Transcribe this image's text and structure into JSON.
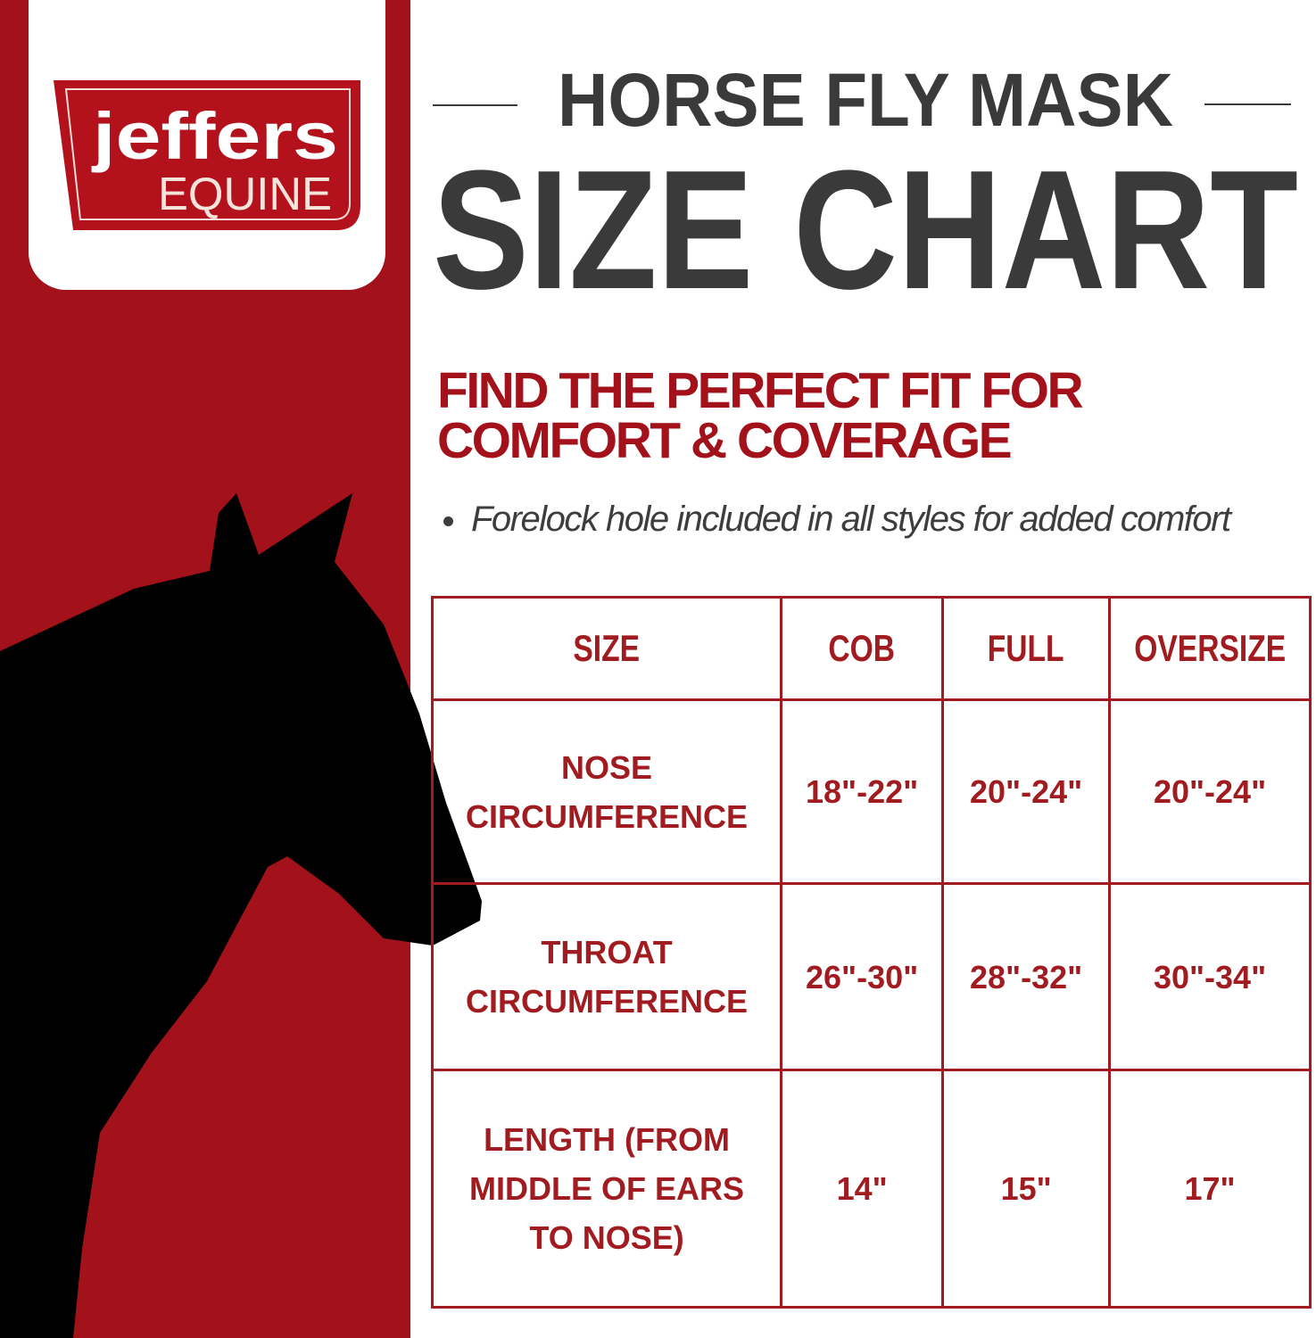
{
  "brand": {
    "logo_text": "jeffers EQUINE",
    "color": "#a3111a"
  },
  "header": {
    "title_top": "HORSE FLY MASK",
    "title_main": "SIZE CHART"
  },
  "subtitle": "FIND THE PERFECT FIT FOR COMFORT & COVERAGE",
  "bullet": "Forelock hole included in all styles for added comfort",
  "table": {
    "headers": [
      "SIZE",
      "COB",
      "FULL",
      "OVERSIZE"
    ],
    "rows": [
      {
        "label": "NOSE CIRCUMFERENCE",
        "values": [
          "18\"-22\"",
          "20\"-24\"",
          "20\"-24\""
        ]
      },
      {
        "label": "THROAT CIRCUMFERENCE",
        "values": [
          "26\"-30\"",
          "28\"-32\"",
          "30\"-34\""
        ]
      },
      {
        "label": "LENGTH (FROM MIDDLE OF EARS TO NOSE)",
        "values": [
          "14\"",
          "15\"",
          "17\""
        ]
      }
    ]
  }
}
